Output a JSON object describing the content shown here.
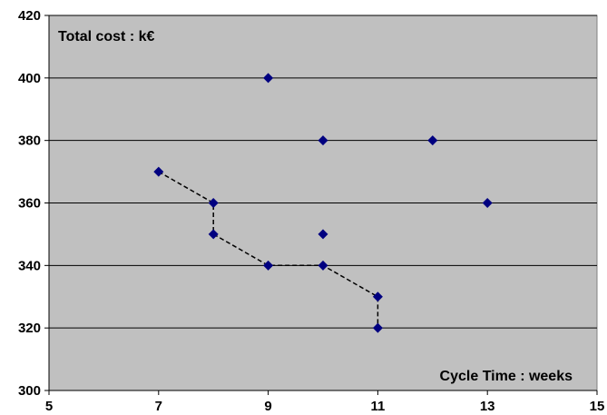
{
  "chart_data": {
    "type": "scatter",
    "title": "",
    "ylabel": "Total cost : k€",
    "xlabel": "Cycle Time : weeks",
    "xlim": [
      5,
      15
    ],
    "ylim": [
      300,
      420
    ],
    "x_ticks": [
      "5",
      "7",
      "9",
      "11",
      "13",
      "15"
    ],
    "y_ticks": [
      "300",
      "320",
      "340",
      "360",
      "380",
      "400",
      "420"
    ],
    "grid": "horizontal",
    "colors": {
      "plot_bg": "#c0c0c0",
      "marker": "#000080",
      "grid": "#000000",
      "frontier": "#000000"
    },
    "series": [
      {
        "marker": "diamond",
        "points": [
          {
            "x": 9,
            "y": 400
          },
          {
            "x": 10,
            "y": 380
          },
          {
            "x": 12,
            "y": 380
          },
          {
            "x": 7,
            "y": 370
          },
          {
            "x": 8,
            "y": 360
          },
          {
            "x": 13,
            "y": 360
          },
          {
            "x": 8,
            "y": 350
          },
          {
            "x": 10,
            "y": 350
          },
          {
            "x": 9,
            "y": 340
          },
          {
            "x": 10,
            "y": 340
          },
          {
            "x": 11,
            "y": 330
          },
          {
            "x": 11,
            "y": 320
          }
        ]
      }
    ],
    "frontier_line": {
      "style": "dashed",
      "points": [
        {
          "x": 7,
          "y": 370
        },
        {
          "x": 8,
          "y": 360
        },
        {
          "x": 8,
          "y": 350
        },
        {
          "x": 9,
          "y": 340
        },
        {
          "x": 10,
          "y": 340
        },
        {
          "x": 11,
          "y": 330
        },
        {
          "x": 11,
          "y": 320
        }
      ]
    }
  }
}
